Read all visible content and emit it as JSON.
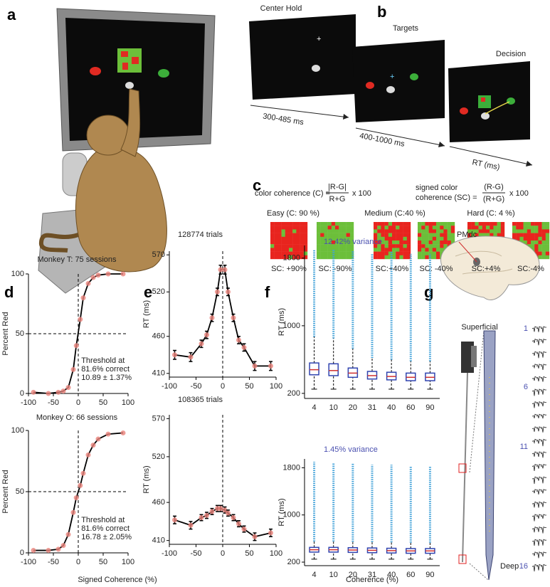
{
  "panel_labels": [
    "a",
    "b",
    "c",
    "d",
    "e",
    "f",
    "g"
  ],
  "task": {
    "stages": [
      "Center Hold",
      "Targets",
      "Decision"
    ],
    "intervals": [
      "300-485 ms",
      "400-1000 ms",
      "RT (ms)"
    ]
  },
  "coherence": {
    "formula1": {
      "lhs": "color coherence (C) =",
      "num": "|R-G|",
      "den": "R+G",
      "mult": "x 100"
    },
    "formula2": {
      "lhs": [
        "signed color",
        "coherence (SC) ="
      ],
      "num": "(R-G)",
      "den": "(R+G)",
      "mult": "x 100"
    },
    "groups": [
      "Easy (C: 90 %)",
      "Medium (C:40 %)",
      "Hard (C: 4 %)"
    ],
    "examples": [
      "SC: +90%",
      "SC: -90%",
      "SC:+40%",
      "SC: -40%",
      "SC:+4%",
      "SC:-4%"
    ]
  },
  "recording": {
    "area": "PMdc",
    "top": "Superficial",
    "bottom": "Deep",
    "channels": [
      "1",
      "6",
      "11",
      "16"
    ]
  },
  "chart_data": [
    {
      "type": "line",
      "title": "Monkey T: 75 sessions",
      "ylabel": "Percent Red",
      "x": [
        -90,
        -60,
        -40,
        -30,
        -20,
        -10,
        -4,
        4,
        10,
        20,
        30,
        40,
        60,
        90
      ],
      "values": [
        1,
        0,
        1,
        2,
        5,
        20,
        40,
        62,
        80,
        92,
        97,
        99,
        100,
        100
      ],
      "xlim": [
        -100,
        100
      ],
      "ylim": [
        0,
        100
      ],
      "xticks": [
        -100,
        -50,
        0,
        50,
        100
      ],
      "yticks": [
        0,
        50,
        100
      ],
      "hline": 50,
      "vline": 0,
      "annotation": [
        "Threshold at",
        "81.6% correct",
        "10.89 ± 1.37%"
      ],
      "color": "#000000",
      "marker_color": "#e8827a"
    },
    {
      "type": "line",
      "title": "Monkey O: 66 sessions",
      "ylabel": "Percent Red",
      "xlabel": "Signed Coherence (%)",
      "x": [
        -90,
        -60,
        -40,
        -30,
        -20,
        -10,
        -4,
        4,
        10,
        20,
        30,
        40,
        60,
        90
      ],
      "values": [
        2,
        2,
        3,
        6,
        15,
        33,
        45,
        55,
        65,
        80,
        88,
        93,
        97,
        98
      ],
      "xlim": [
        -100,
        100
      ],
      "ylim": [
        0,
        100
      ],
      "xticks": [
        -100,
        -50,
        0,
        50,
        100
      ],
      "yticks": [
        0,
        50,
        100
      ],
      "hline": 50,
      "vline": 0,
      "annotation": [
        "Threshold at",
        "81.6% correct",
        "16.78 ± 2.05%"
      ],
      "color": "#000000",
      "marker_color": "#e8827a"
    },
    {
      "type": "line",
      "title": "128774 trials",
      "ylabel": "RT (ms)",
      "x": [
        -90,
        -60,
        -40,
        -30,
        -20,
        -10,
        -4,
        4,
        10,
        20,
        30,
        40,
        60,
        90
      ],
      "values": [
        435,
        432,
        450,
        462,
        485,
        520,
        550,
        550,
        520,
        485,
        455,
        445,
        420,
        420
      ],
      "errors": [
        6,
        6,
        5,
        5,
        5,
        5,
        6,
        6,
        5,
        5,
        5,
        5,
        6,
        6
      ],
      "xlim": [
        -100,
        100
      ],
      "ylim": [
        405,
        575
      ],
      "xticks": [
        -100,
        -50,
        0,
        50,
        100
      ],
      "yticks": [
        410,
        460,
        520,
        570
      ],
      "vline": 0,
      "color": "#000000",
      "marker_color": "#e8827a"
    },
    {
      "type": "line",
      "title": "108365 trials",
      "ylabel": "RT (ms)",
      "x": [
        -90,
        -60,
        -40,
        -30,
        -20,
        -10,
        -4,
        4,
        10,
        20,
        30,
        40,
        60,
        90
      ],
      "values": [
        437,
        430,
        440,
        443,
        448,
        452,
        452,
        450,
        446,
        440,
        432,
        425,
        415,
        420
      ],
      "errors": [
        5,
        5,
        4,
        4,
        4,
        4,
        4,
        4,
        4,
        4,
        4,
        4,
        5,
        5
      ],
      "xlim": [
        -100,
        100
      ],
      "ylim": [
        405,
        575
      ],
      "xticks": [
        -100,
        -50,
        0,
        50,
        100
      ],
      "yticks": [
        410,
        460,
        520,
        570
      ],
      "vline": 0,
      "color": "#000000",
      "marker_color": "#e8827a"
    },
    {
      "type": "box",
      "annotation": "12.42% variance",
      "ylabel": "RT (ms)",
      "categories": [
        "4",
        "10",
        "20",
        "31",
        "40",
        "60",
        "90"
      ],
      "whisker_low": [
        250,
        250,
        250,
        250,
        250,
        250,
        250
      ],
      "q1": [
        420,
        410,
        390,
        370,
        360,
        350,
        350
      ],
      "median": [
        480,
        470,
        440,
        410,
        400,
        390,
        390
      ],
      "q3": [
        560,
        550,
        500,
        460,
        450,
        440,
        440
      ],
      "whisker_high": [
        870,
        850,
        730,
        620,
        600,
        580,
        580
      ],
      "outlier_max": [
        1900,
        1900,
        1880,
        1850,
        1880,
        1850,
        1850
      ],
      "ylim": [
        140,
        1950
      ],
      "yticks": [
        200,
        1000,
        1800
      ],
      "color": "#3044b0",
      "median_color": "#d03030",
      "outlier_color": "#3fa0d8"
    },
    {
      "type": "box",
      "annotation": "1.45% variance",
      "ylabel": "RT (ms)",
      "xlabel": "Coherence (%)",
      "categories": [
        "4",
        "10",
        "20",
        "31",
        "40",
        "60",
        "90"
      ],
      "whisker_low": [
        250,
        250,
        250,
        250,
        250,
        250,
        250
      ],
      "q1": [
        370,
        370,
        365,
        360,
        355,
        350,
        350
      ],
      "median": [
        410,
        410,
        405,
        400,
        395,
        390,
        390
      ],
      "q3": [
        450,
        450,
        445,
        440,
        435,
        430,
        430
      ],
      "whisker_high": [
        550,
        550,
        545,
        540,
        535,
        530,
        530
      ],
      "outlier_max": [
        1900,
        1880,
        1880,
        1850,
        1850,
        1830,
        1830
      ],
      "ylim": [
        140,
        1950
      ],
      "yticks": [
        200,
        1000,
        1800
      ],
      "color": "#3044b0",
      "median_color": "#d03030",
      "outlier_color": "#3fa0d8"
    }
  ]
}
